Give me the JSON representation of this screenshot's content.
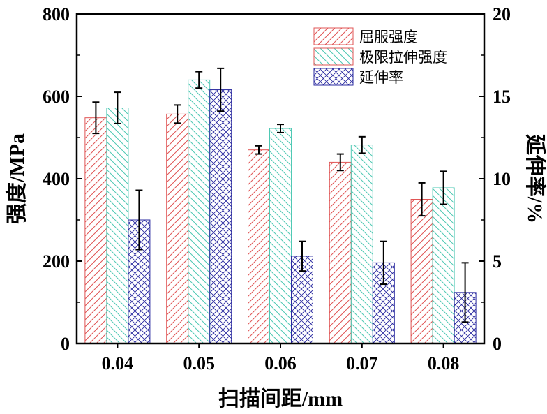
{
  "chart_data": {
    "type": "bar",
    "categories": [
      "0.04",
      "0.05",
      "0.06",
      "0.07",
      "0.08"
    ],
    "xlabel": "扫描间距/mm",
    "ylabel": "强度/MPa",
    "ylabel_right": "延伸率/%",
    "ylim": [
      0,
      800
    ],
    "ylim_right": [
      0,
      20
    ],
    "yticks": [
      "0",
      "200",
      "400",
      "600",
      "800"
    ],
    "yticks_right": [
      "0",
      "5",
      "10",
      "15",
      "20"
    ],
    "legend_position": "top-right",
    "grid": false,
    "series": [
      {
        "name": "屈服强度",
        "axis": "left",
        "color": "#e05555",
        "pattern": "diag-up",
        "values": [
          548,
          557,
          470,
          440,
          350
        ],
        "errors": [
          38,
          22,
          10,
          20,
          40
        ]
      },
      {
        "name": "极限拉伸强度",
        "axis": "left",
        "color": "#4fc9b4",
        "pattern": "diag-down",
        "values": [
          572,
          640,
          522,
          482,
          378
        ],
        "errors": [
          38,
          20,
          10,
          20,
          40
        ]
      },
      {
        "name": "延伸率",
        "axis": "right",
        "color": "#2b2ba0",
        "pattern": "cross",
        "values": [
          7.5,
          15.4,
          5.3,
          4.9,
          3.1
        ],
        "errors": [
          1.8,
          1.3,
          0.9,
          1.3,
          1.8
        ]
      }
    ]
  }
}
